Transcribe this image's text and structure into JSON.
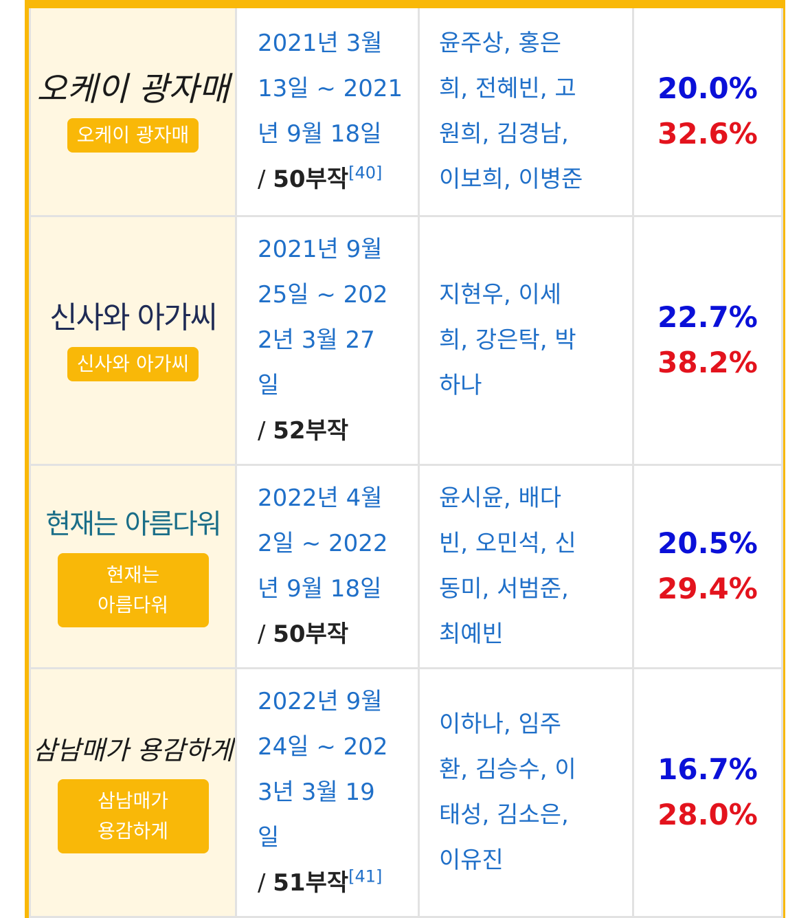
{
  "rows": [
    {
      "logo_text": "오케이 광자매",
      "badge_lines": [
        "오케이 광자매"
      ],
      "date_lines": [
        "2021년 3월",
        "13일 ~ 2021",
        "년 9월 18일"
      ],
      "episodes_prefix": "/ ",
      "episodes": "50부작",
      "ref": "[40]",
      "cast_lines": [
        "윤주상, 홍은",
        "희, 전혜빈, 고",
        "원희, 김경남,",
        "이보희, 이병준"
      ],
      "rate_min": "20.0%",
      "rate_max": "32.6%"
    },
    {
      "logo_text": "신사와 아가씨",
      "badge_lines": [
        "신사와 아가씨"
      ],
      "date_lines": [
        "2021년 9월",
        "25일 ~ 202",
        "2년 3월 27",
        "일"
      ],
      "episodes_prefix": "/ ",
      "episodes": "52부작",
      "ref": "",
      "cast_lines": [
        "지현우, 이세",
        "희, 강은탁, 박",
        "하나"
      ],
      "rate_min": "22.7%",
      "rate_max": "38.2%"
    },
    {
      "logo_text": "현재는 아름다워",
      "badge_lines": [
        "현재는",
        "아름다워"
      ],
      "date_lines": [
        "2022년 4월",
        "2일 ~ 2022",
        "년 9월 18일"
      ],
      "episodes_prefix": "/ ",
      "episodes": "50부작",
      "ref": "",
      "cast_lines": [
        "윤시윤, 배다",
        "빈, 오민석, 신",
        "동미, 서범준,",
        "최예빈"
      ],
      "rate_min": "20.5%",
      "rate_max": "29.4%"
    },
    {
      "logo_text": "삼남매가 용감하게",
      "badge_lines": [
        "삼남매가",
        "용감하게"
      ],
      "date_lines": [
        "2022년 9월",
        "24일 ~ 202",
        "3년 3월 19",
        "일"
      ],
      "episodes_prefix": "/ ",
      "episodes": "51부작",
      "ref": "[41]",
      "cast_lines": [
        "이하나, 임주",
        "환, 김승수, 이",
        "태성, 김소은,",
        "이유진"
      ],
      "rate_min": "16.7%",
      "rate_max": "28.0%"
    }
  ],
  "colors": {
    "accent": "#f9b808",
    "link": "#1f6fc8",
    "rate_min": "#0a10d8",
    "rate_max": "#e3131d"
  }
}
